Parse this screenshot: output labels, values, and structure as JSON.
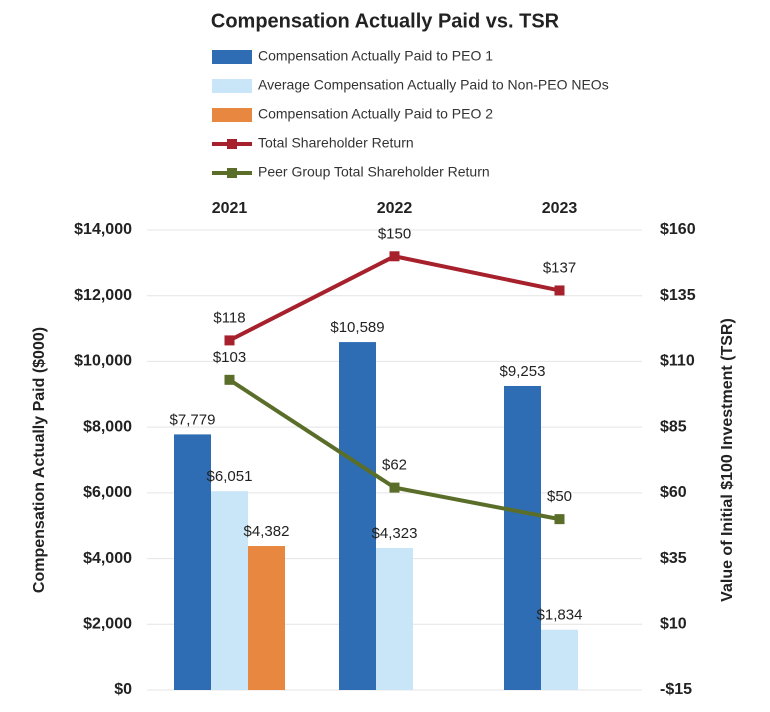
{
  "chart_data": {
    "type": "bar",
    "title": "Compensation Actually Paid vs. TSR",
    "categories": [
      "2021",
      "2022",
      "2023"
    ],
    "series": [
      {
        "name": "Compensation Actually Paid to PEO 1",
        "type": "bar",
        "color": "#2e6db4",
        "values": [
          7779,
          10589,
          9253
        ],
        "value_labels": [
          "$7,779",
          "$10,589",
          "$9,253"
        ]
      },
      {
        "name": "Average Compensation Actually Paid to Non-PEO NEOs",
        "type": "bar",
        "color": "#c9e6f8",
        "values": [
          6051,
          4323,
          1834
        ],
        "value_labels": [
          "$6,051",
          "$4,323",
          "$1,834"
        ]
      },
      {
        "name": "Compensation Actually Paid to PEO 2",
        "type": "bar",
        "color": "#e8873f",
        "values": [
          4382,
          null,
          null
        ],
        "value_labels": [
          "$4,382",
          null,
          null
        ]
      },
      {
        "name": "Total Shareholder Return",
        "type": "line",
        "axis": "y2",
        "color": "#a6212b",
        "values": [
          118,
          150,
          137
        ],
        "value_labels": [
          "$118",
          "$150",
          "$137"
        ]
      },
      {
        "name": "Peer Group Total Shareholder Return",
        "type": "line",
        "axis": "y2",
        "color": "#5a6e2a",
        "values": [
          103,
          62,
          50
        ],
        "value_labels": [
          "$103",
          "$62",
          "$50"
        ]
      }
    ],
    "y_label": "Compensation Actually Paid ($000)",
    "y2_label": "Value of Initial $100 Investment (TSR)",
    "ylim": [
      0,
      14000
    ],
    "yticks": [
      {
        "value": 0,
        "label": "$0"
      },
      {
        "value": 2000,
        "label": "$2,000"
      },
      {
        "value": 4000,
        "label": "$4,000"
      },
      {
        "value": 6000,
        "label": "$6,000"
      },
      {
        "value": 8000,
        "label": "$8,000"
      },
      {
        "value": 10000,
        "label": "$10,000"
      },
      {
        "value": 12000,
        "label": "$12,000"
      },
      {
        "value": 14000,
        "label": "$14,000"
      }
    ],
    "y2lim": [
      -15,
      160
    ],
    "y2ticks": [
      {
        "value": -15,
        "label": "-$15"
      },
      {
        "value": 10,
        "label": "$10"
      },
      {
        "value": 35,
        "label": "$35"
      },
      {
        "value": 60,
        "label": "$60"
      },
      {
        "value": 85,
        "label": "$85"
      },
      {
        "value": 110,
        "label": "$110"
      },
      {
        "value": 135,
        "label": "$135"
      },
      {
        "value": 160,
        "label": "$160"
      }
    ],
    "grid": true
  }
}
